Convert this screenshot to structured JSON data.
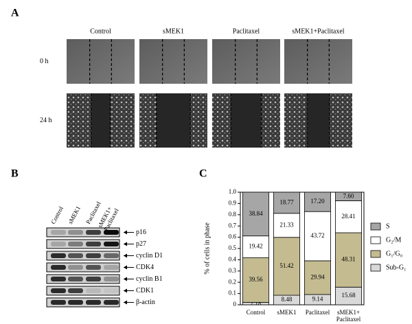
{
  "panels": {
    "a": "A",
    "b": "B"
  },
  "panel_a": {
    "columns": [
      "Control",
      "sMEK1",
      "Paclitaxel",
      "sMEK1+Paclitaxel"
    ],
    "rows": [
      "0 h",
      "24 h"
    ]
  },
  "panel_b": {
    "lanes": [
      "Control",
      "sMEK1",
      "Paclitaxel",
      "sMEK1+\nPaclitaxel"
    ],
    "proteins": [
      "p16",
      "p27",
      "cyclin D1",
      "CDK4",
      "cyclin B1",
      "CDK1",
      "β-actin"
    ]
  },
  "chart_data": {
    "type": "bar",
    "panel_label": "C",
    "stacked": true,
    "y_label": "% of cells in phase",
    "categories": [
      "Control",
      "sMEK1",
      "Paclitaxel",
      "sMEK1+\nPaclitaxel"
    ],
    "series": [
      {
        "name": "Sub-G₁",
        "color": "#d9d9d9",
        "values": [
          0.0218,
          0.0848,
          0.0914,
          0.1568
        ],
        "value_labels": [
          "2.18",
          "8.48",
          "9.14",
          "15.68"
        ]
      },
      {
        "name": "G₁/G₀",
        "color": "#c4bb91",
        "values": [
          0.3956,
          0.5142,
          0.2994,
          0.4831
        ],
        "value_labels": [
          "39.56",
          "51.42",
          "29.94",
          "48.31"
        ]
      },
      {
        "name": "G₂/M",
        "color": "#ffffff",
        "values": [
          0.1942,
          0.2133,
          0.4372,
          0.2841
        ],
        "value_labels": [
          "19.42",
          "21.33",
          "43.72",
          "28.41"
        ]
      },
      {
        "name": "S",
        "color": "#a6a6a6",
        "values": [
          0.3884,
          0.1877,
          0.172,
          0.076
        ],
        "value_labels": [
          "38.84",
          "18.77",
          "17.20",
          "7.60"
        ]
      }
    ],
    "ylim": [
      0,
      1
    ],
    "yticks": [
      0,
      0.1,
      0.2,
      0.3,
      0.4,
      0.5,
      0.6,
      0.7,
      0.8,
      0.9,
      {
        "value": 1,
        "label": "1.0"
      }
    ]
  }
}
